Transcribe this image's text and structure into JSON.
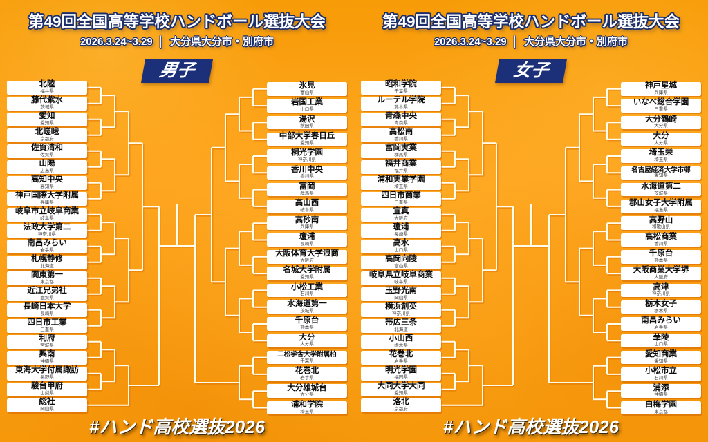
{
  "header": {
    "title": "第49回全国高等学校ハンドボール選抜大会",
    "date": "2026.3.24~3.29",
    "separator": "│",
    "location": "大分県大分市・別府市"
  },
  "footer": {
    "hashtag": "#ハンド高校選抜2026"
  },
  "colors": {
    "background_orange": "#FFA41E",
    "badge_navy": "#1B3078",
    "title_outline_navy": "#1C2F6B",
    "bracket_line_cream": "#FFFDEC",
    "bracket_line_shadow": "#D96A00",
    "team_box_white": "#FFFFFF",
    "team_text_black": "#0D0D0D"
  },
  "brackets": [
    {
      "gender_label": "男子",
      "left_column": [
        {
          "name": "北陸",
          "pref": "福井県"
        },
        {
          "name": "藤代紫水",
          "pref": "茨城県"
        },
        {
          "name": "愛知",
          "pref": "愛知県"
        },
        {
          "name": "北嵯峨",
          "pref": "京都府"
        },
        {
          "name": "佐賀清和",
          "pref": "佐賀県"
        },
        {
          "name": "山陽",
          "pref": "広島県"
        },
        {
          "name": "高知中央",
          "pref": "高知県"
        },
        {
          "name": "神戸国際大学附属",
          "pref": "兵庫県"
        },
        {
          "name": "岐阜市立岐阜商業",
          "pref": "岐阜県"
        },
        {
          "name": "法政大学第二",
          "pref": "神奈川県"
        },
        {
          "name": "南昌みらい",
          "pref": "岩手県"
        },
        {
          "name": "札幌静修",
          "pref": "北海道"
        },
        {
          "name": "関東第一",
          "pref": "東京都"
        },
        {
          "name": "近江兄弟社",
          "pref": "滋賀県"
        },
        {
          "name": "長崎日本大学",
          "pref": "長崎県"
        },
        {
          "name": "四日市工業",
          "pref": "三重県"
        },
        {
          "name": "利府",
          "pref": "宮城県"
        },
        {
          "name": "興南",
          "pref": "沖縄県"
        },
        {
          "name": "東海大学付属諏訪",
          "pref": "長野県"
        },
        {
          "name": "駿台甲府",
          "pref": "山梨県"
        },
        {
          "name": "総社",
          "pref": "岡山県"
        }
      ],
      "right_column": [
        {
          "name": "氷見",
          "pref": "富山県"
        },
        {
          "name": "岩国工業",
          "pref": "山口県"
        },
        {
          "name": "湯沢",
          "pref": "秋田県"
        },
        {
          "name": "中部大学春日丘",
          "pref": "愛知県"
        },
        {
          "name": "桐光学園",
          "pref": "神奈川県"
        },
        {
          "name": "香川中央",
          "pref": "香川県"
        },
        {
          "name": "富岡",
          "pref": "群馬県"
        },
        {
          "name": "高山西",
          "pref": "岐阜県"
        },
        {
          "name": "高砂南",
          "pref": "兵庫県"
        },
        {
          "name": "瓊浦",
          "pref": "長崎県"
        },
        {
          "name": "大阪体育大学浪商",
          "pref": "大阪府"
        },
        {
          "name": "名城大学附属",
          "pref": "愛知県"
        },
        {
          "name": "小松工業",
          "pref": "石川県"
        },
        {
          "name": "水海道第一",
          "pref": "茨城県"
        },
        {
          "name": "千原台",
          "pref": "熊本県"
        },
        {
          "name": "大分",
          "pref": "大分県"
        },
        {
          "name": "二松学舎大学附属柏",
          "pref": "千葉県"
        },
        {
          "name": "花巻北",
          "pref": "岩手県"
        },
        {
          "name": "大分雄城台",
          "pref": "大分県"
        },
        {
          "name": "浦和学院",
          "pref": "埼玉県"
        }
      ]
    },
    {
      "gender_label": "女子",
      "left_column": [
        {
          "name": "昭和学院",
          "pref": "千葉県"
        },
        {
          "name": "ルーテル学院",
          "pref": "熊本県"
        },
        {
          "name": "青森中央",
          "pref": "青森県"
        },
        {
          "name": "高松南",
          "pref": "香川県"
        },
        {
          "name": "富岡実業",
          "pref": "群馬県"
        },
        {
          "name": "福井商業",
          "pref": "福井県"
        },
        {
          "name": "浦和実業学園",
          "pref": "埼玉県"
        },
        {
          "name": "四日市商業",
          "pref": "三重県"
        },
        {
          "name": "宣真",
          "pref": "大阪府"
        },
        {
          "name": "瓊浦",
          "pref": "長崎県"
        },
        {
          "name": "高水",
          "pref": "山口県"
        },
        {
          "name": "高岡向陵",
          "pref": "富山県"
        },
        {
          "name": "岐阜県立岐阜商業",
          "pref": "岐阜県"
        },
        {
          "name": "玉野光南",
          "pref": "岡山県"
        },
        {
          "name": "横浜創英",
          "pref": "神奈川県"
        },
        {
          "name": "帯広三条",
          "pref": "北海道"
        },
        {
          "name": "小山西",
          "pref": "栃木県"
        },
        {
          "name": "花巻北",
          "pref": "岩手県"
        },
        {
          "name": "明光学園",
          "pref": "福岡県"
        },
        {
          "name": "大同大学大同",
          "pref": "愛知県"
        },
        {
          "name": "洛北",
          "pref": "京都府"
        }
      ],
      "right_column": [
        {
          "name": "神戸星城",
          "pref": "兵庫県"
        },
        {
          "name": "いなべ総合学園",
          "pref": "三重県"
        },
        {
          "name": "大分鶴崎",
          "pref": "大分県"
        },
        {
          "name": "大分",
          "pref": "大分県"
        },
        {
          "name": "埼玉栄",
          "pref": "埼玉県"
        },
        {
          "name": "名古屋経済大学市邨",
          "pref": "愛知県"
        },
        {
          "name": "水海道第二",
          "pref": "茨城県"
        },
        {
          "name": "郡山女子大学附属",
          "pref": "福島県"
        },
        {
          "name": "高野山",
          "pref": "和歌山県"
        },
        {
          "name": "高松商業",
          "pref": "香川県"
        },
        {
          "name": "千原台",
          "pref": "熊本県"
        },
        {
          "name": "大阪商業大学堺",
          "pref": "大阪府"
        },
        {
          "name": "高津",
          "pref": "神奈川県"
        },
        {
          "name": "栃木女子",
          "pref": "栃木県"
        },
        {
          "name": "南昌みらい",
          "pref": "岩手県"
        },
        {
          "name": "華陵",
          "pref": "山口県"
        },
        {
          "name": "愛知商業",
          "pref": "愛知県"
        },
        {
          "name": "小松市立",
          "pref": "石川県"
        },
        {
          "name": "浦添",
          "pref": "沖縄県"
        },
        {
          "name": "白梅学園",
          "pref": "東京都"
        }
      ]
    }
  ]
}
